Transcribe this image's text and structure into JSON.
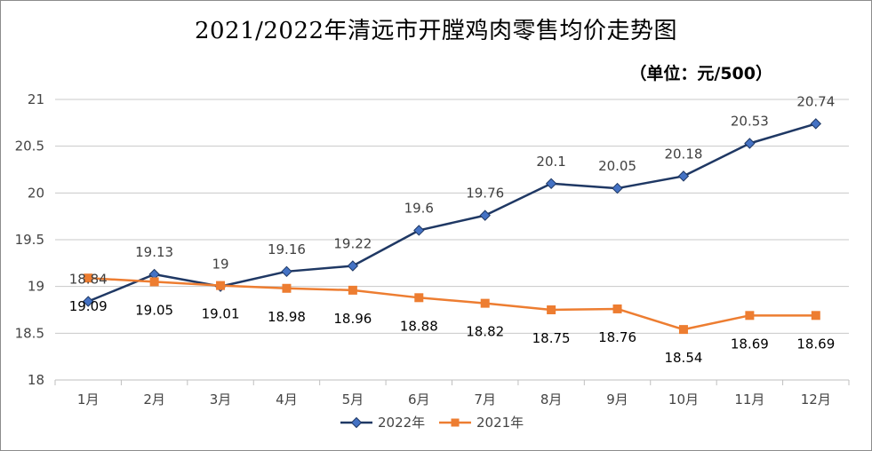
{
  "chart_data": {
    "type": "line",
    "title": "2021/2022年清远市开膛鸡肉零售均价走势图",
    "unit": "（单位：元/500）",
    "categories": [
      "1月",
      "2月",
      "3月",
      "4月",
      "5月",
      "6月",
      "7月",
      "8月",
      "9月",
      "10月",
      "11月",
      "12月"
    ],
    "ylim": [
      18,
      21
    ],
    "yticks": [
      "18",
      "18.5",
      "19",
      "19.5",
      "20",
      "20.5",
      "21"
    ],
    "grid": true,
    "legend_position": "bottom",
    "series": [
      {
        "name": "2022年",
        "color": "#1f3864",
        "marker": "diamond",
        "values": [
          18.84,
          19.13,
          19,
          19.16,
          19.22,
          19.6,
          19.76,
          20.1,
          20.05,
          20.18,
          20.53,
          20.74
        ],
        "labels": [
          "18.84",
          "19.13",
          "19",
          "19.16",
          "19.22",
          "19.6",
          "19.76",
          "20.1",
          "20.05",
          "20.18",
          "20.53",
          "20.74"
        ]
      },
      {
        "name": "2021年",
        "color": "#ed7d31",
        "marker": "square",
        "values": [
          19.09,
          19.05,
          19.01,
          18.98,
          18.96,
          18.88,
          18.82,
          18.75,
          18.76,
          18.54,
          18.69,
          18.69
        ],
        "labels": [
          "19.09",
          "19.05",
          "19.01",
          "18.98",
          "18.96",
          "18.88",
          "18.82",
          "18.75",
          "18.76",
          "18.54",
          "18.69",
          "18.69"
        ]
      }
    ]
  }
}
